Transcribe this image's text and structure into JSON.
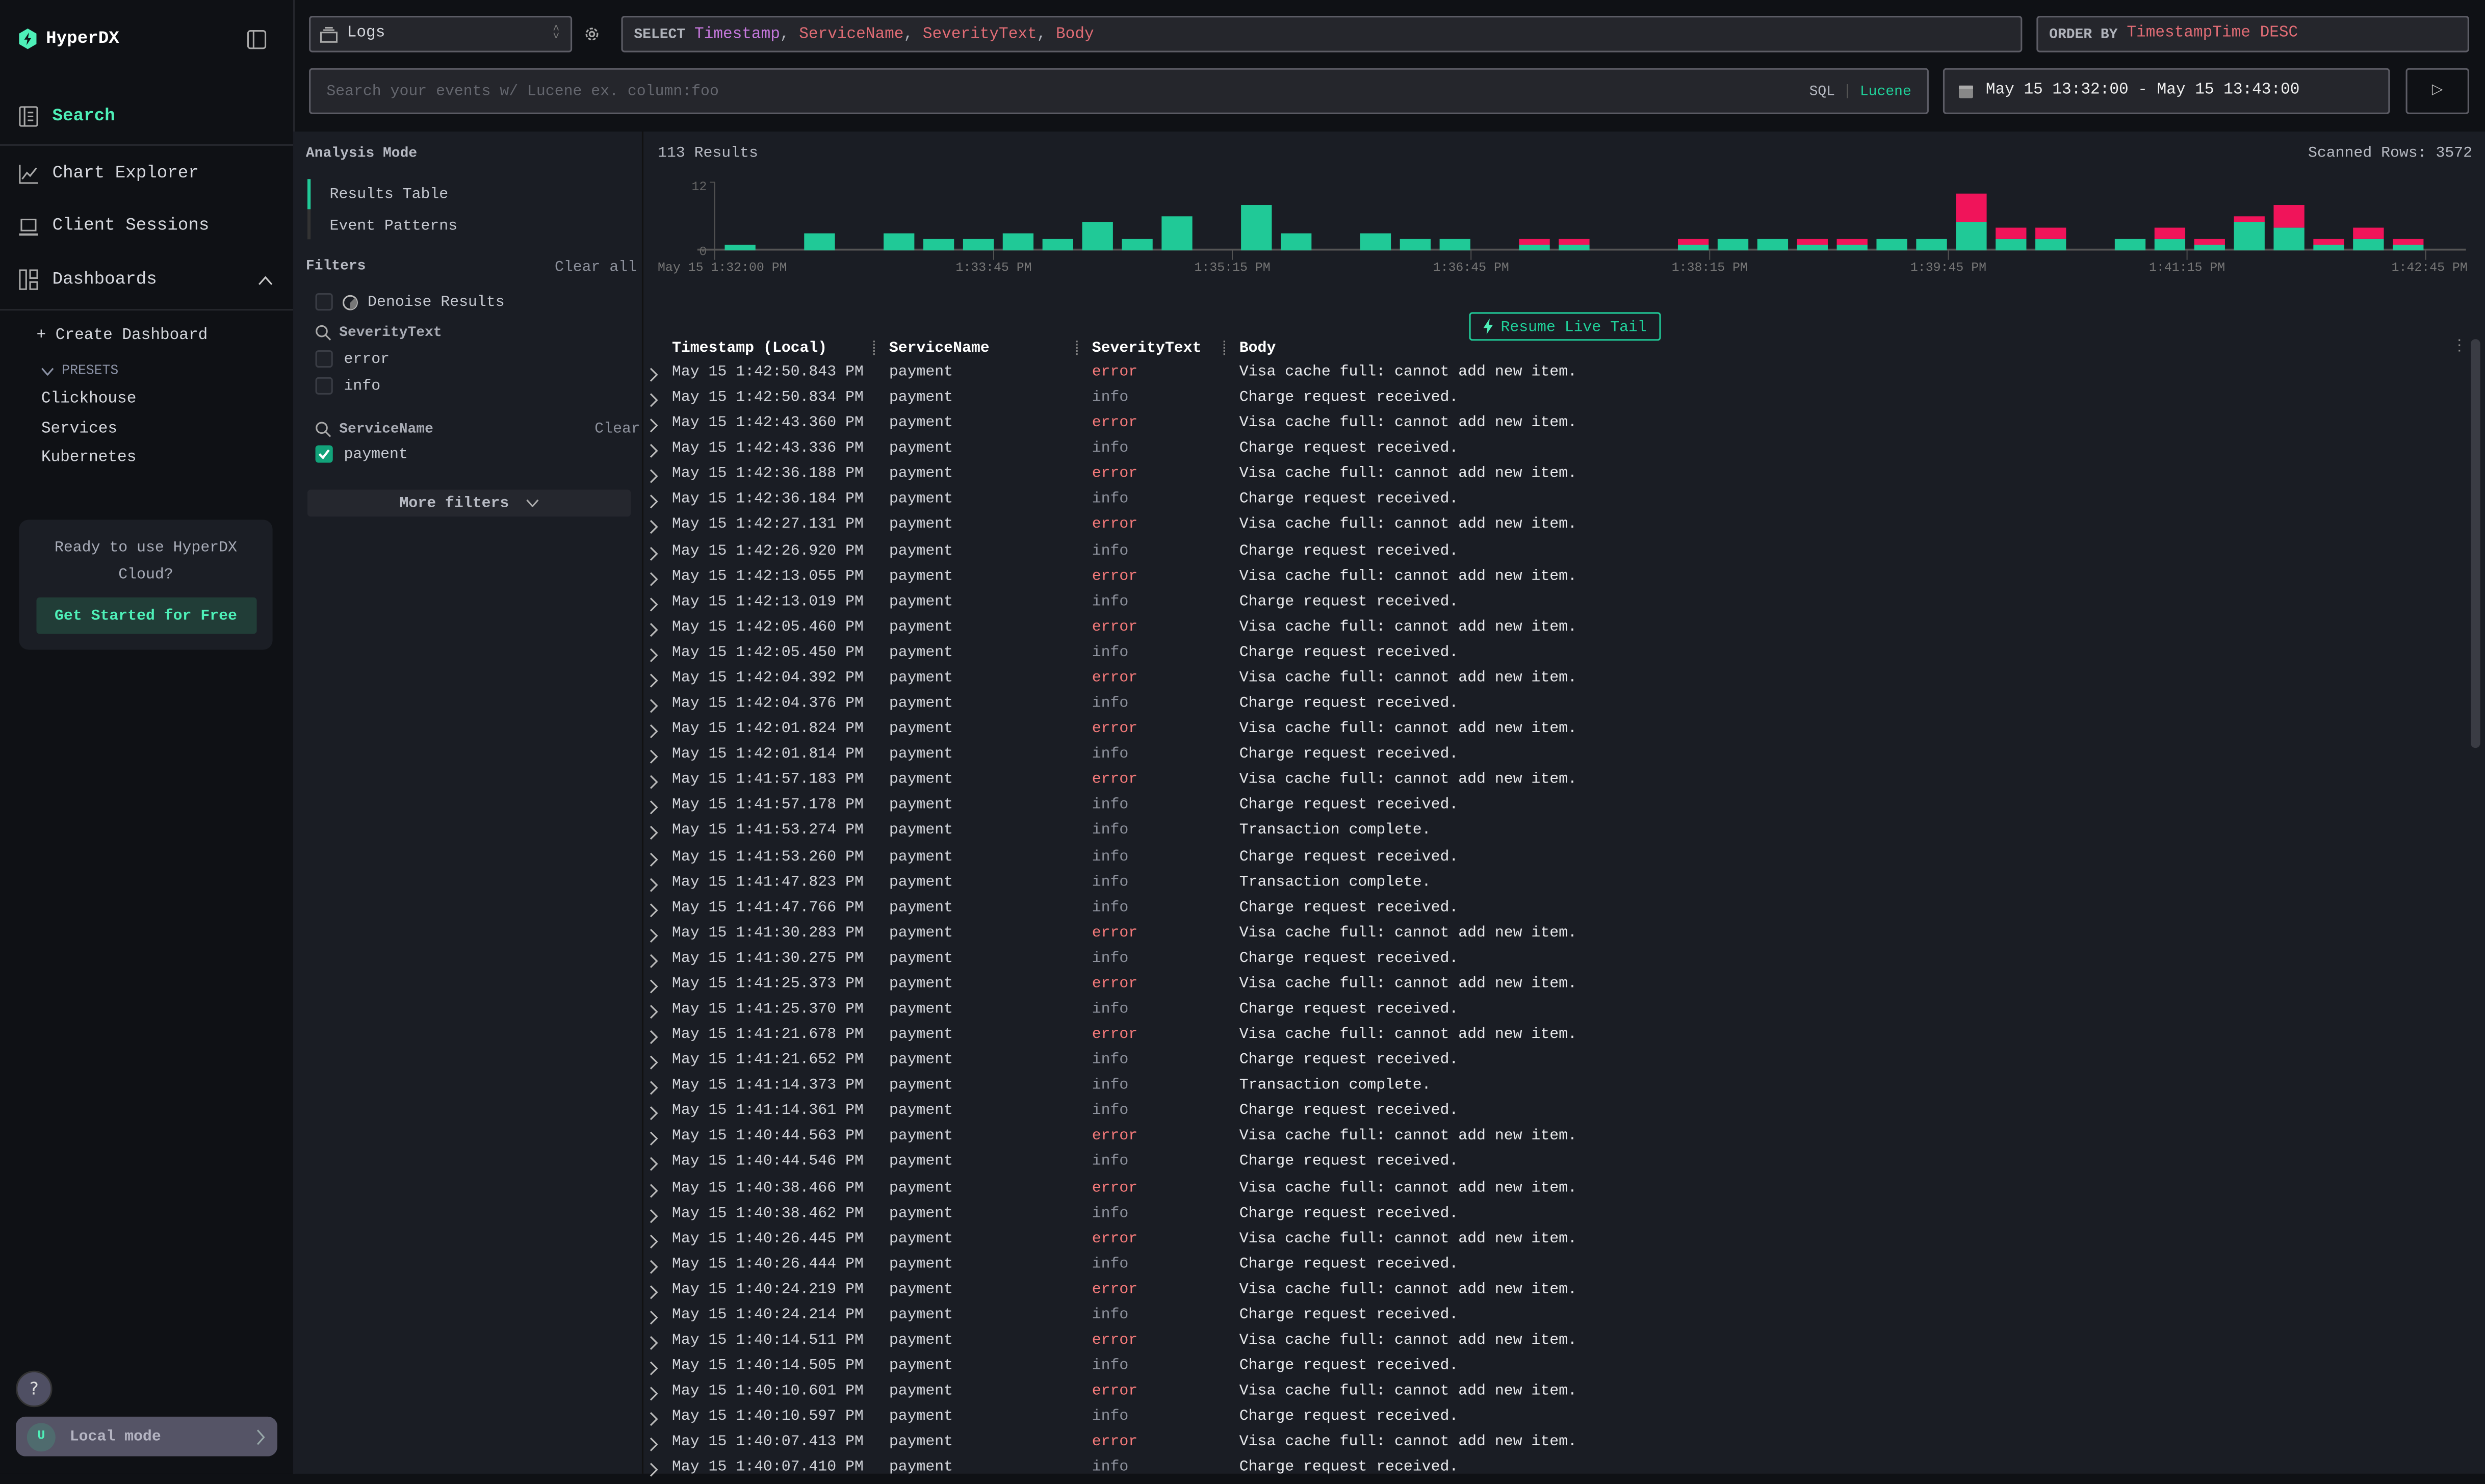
{
  "app": {
    "name": "HyperDX"
  },
  "sidebar": {
    "items": [
      {
        "label": "Search",
        "icon": "search-list-icon",
        "active": true
      },
      {
        "label": "Chart Explorer",
        "icon": "chart-line-icon"
      },
      {
        "label": "Client Sessions",
        "icon": "laptop-icon"
      },
      {
        "label": "Dashboards",
        "icon": "dashboard-icon"
      }
    ],
    "create_dashboard": "+ Create Dashboard",
    "presets_label": "PRESETS",
    "presets": [
      "Clickhouse",
      "Services",
      "Kubernetes"
    ],
    "cloud_text": "Ready to use HyperDX Cloud?",
    "cloud_button": "Get Started for Free",
    "help": "?",
    "user_initial": "U",
    "mode": "Local mode"
  },
  "toolbar": {
    "source": "Logs",
    "select_kw": "SELECT",
    "select_cols": [
      {
        "t": "Timestamp",
        "c": "#c678dd"
      },
      {
        "t": ", ",
        "c": "#b0b3bb"
      },
      {
        "t": "ServiceName",
        "c": "#e06c75"
      },
      {
        "t": ", ",
        "c": "#b0b3bb"
      },
      {
        "t": "SeverityText",
        "c": "#e06c75"
      },
      {
        "t": ", ",
        "c": "#b0b3bb"
      },
      {
        "t": "Body",
        "c": "#e06c75"
      }
    ],
    "order_kw": "ORDER BY",
    "order_value": "TimestampTime DESC",
    "search_placeholder": "Search your events w/ Lucene ex. column:foo",
    "lang_sql": "SQL",
    "lang_sep": "|",
    "lang_lucene": "Lucene",
    "time_range": "May 15 13:32:00 - May 15 13:43:00",
    "play": "▷"
  },
  "filters": {
    "analysis_mode": "Analysis Mode",
    "modes": [
      "Results Table",
      "Event Patterns"
    ],
    "title": "Filters",
    "clear_all": "Clear all",
    "denoise": "Denoise Results",
    "groups": [
      {
        "name": "SeverityText",
        "clear": "",
        "options": [
          {
            "label": "error",
            "checked": false
          },
          {
            "label": "info",
            "checked": false
          }
        ]
      },
      {
        "name": "ServiceName",
        "clear": "Clear",
        "options": [
          {
            "label": "payment",
            "checked": true
          }
        ]
      }
    ],
    "more": "More filters"
  },
  "results": {
    "count": "113 Results",
    "scanned": "Scanned Rows: 3572",
    "resume": "Resume Live Tail"
  },
  "colors": {
    "accent": "#4ef0b8",
    "info_bar": "#20c997",
    "error_bar": "#f0145a",
    "error_text": "#f47a7a"
  },
  "chart_data": {
    "type": "bar",
    "stacked": true,
    "ylim": [
      0,
      12
    ],
    "yticks": [
      "12",
      "0"
    ],
    "xticks": [
      "May 15 1:32:00 PM",
      "1:33:45 PM",
      "1:35:15 PM",
      "1:36:45 PM",
      "1:38:15 PM",
      "1:39:45 PM",
      "1:41:15 PM",
      "1:42:45 PM"
    ],
    "series": [
      {
        "severity": "info",
        "values": [
          1,
          0,
          3,
          0,
          3,
          2,
          2,
          3,
          2,
          5,
          2,
          6,
          0,
          8,
          3,
          0,
          3,
          2,
          2,
          0,
          1,
          1,
          0,
          0,
          1,
          2,
          2,
          1,
          1,
          2,
          2,
          5,
          2,
          2,
          0,
          2,
          2,
          1,
          5,
          4,
          1,
          2,
          1
        ]
      },
      {
        "severity": "error",
        "values": [
          0,
          0,
          0,
          0,
          0,
          0,
          0,
          0,
          0,
          0,
          0,
          0,
          0,
          0,
          0,
          0,
          0,
          0,
          0,
          0,
          1,
          1,
          0,
          0,
          1,
          0,
          0,
          1,
          1,
          0,
          0,
          5,
          2,
          2,
          0,
          0,
          2,
          1,
          1,
          4,
          1,
          2,
          1
        ]
      }
    ]
  },
  "table": {
    "columns": [
      "Timestamp (Local)",
      "ServiceName",
      "SeverityText",
      "Body"
    ],
    "rows": [
      [
        "May 15 1:42:50.843 PM",
        "payment",
        "error",
        "Visa cache full: cannot add new item."
      ],
      [
        "May 15 1:42:50.834 PM",
        "payment",
        "info",
        "Charge request received."
      ],
      [
        "May 15 1:42:43.360 PM",
        "payment",
        "error",
        "Visa cache full: cannot add new item."
      ],
      [
        "May 15 1:42:43.336 PM",
        "payment",
        "info",
        "Charge request received."
      ],
      [
        "May 15 1:42:36.188 PM",
        "payment",
        "error",
        "Visa cache full: cannot add new item."
      ],
      [
        "May 15 1:42:36.184 PM",
        "payment",
        "info",
        "Charge request received."
      ],
      [
        "May 15 1:42:27.131 PM",
        "payment",
        "error",
        "Visa cache full: cannot add new item."
      ],
      [
        "May 15 1:42:26.920 PM",
        "payment",
        "info",
        "Charge request received."
      ],
      [
        "May 15 1:42:13.055 PM",
        "payment",
        "error",
        "Visa cache full: cannot add new item."
      ],
      [
        "May 15 1:42:13.019 PM",
        "payment",
        "info",
        "Charge request received."
      ],
      [
        "May 15 1:42:05.460 PM",
        "payment",
        "error",
        "Visa cache full: cannot add new item."
      ],
      [
        "May 15 1:42:05.450 PM",
        "payment",
        "info",
        "Charge request received."
      ],
      [
        "May 15 1:42:04.392 PM",
        "payment",
        "error",
        "Visa cache full: cannot add new item."
      ],
      [
        "May 15 1:42:04.376 PM",
        "payment",
        "info",
        "Charge request received."
      ],
      [
        "May 15 1:42:01.824 PM",
        "payment",
        "error",
        "Visa cache full: cannot add new item."
      ],
      [
        "May 15 1:42:01.814 PM",
        "payment",
        "info",
        "Charge request received."
      ],
      [
        "May 15 1:41:57.183 PM",
        "payment",
        "error",
        "Visa cache full: cannot add new item."
      ],
      [
        "May 15 1:41:57.178 PM",
        "payment",
        "info",
        "Charge request received."
      ],
      [
        "May 15 1:41:53.274 PM",
        "payment",
        "info",
        "Transaction complete."
      ],
      [
        "May 15 1:41:53.260 PM",
        "payment",
        "info",
        "Charge request received."
      ],
      [
        "May 15 1:41:47.823 PM",
        "payment",
        "info",
        "Transaction complete."
      ],
      [
        "May 15 1:41:47.766 PM",
        "payment",
        "info",
        "Charge request received."
      ],
      [
        "May 15 1:41:30.283 PM",
        "payment",
        "error",
        "Visa cache full: cannot add new item."
      ],
      [
        "May 15 1:41:30.275 PM",
        "payment",
        "info",
        "Charge request received."
      ],
      [
        "May 15 1:41:25.373 PM",
        "payment",
        "error",
        "Visa cache full: cannot add new item."
      ],
      [
        "May 15 1:41:25.370 PM",
        "payment",
        "info",
        "Charge request received."
      ],
      [
        "May 15 1:41:21.678 PM",
        "payment",
        "error",
        "Visa cache full: cannot add new item."
      ],
      [
        "May 15 1:41:21.652 PM",
        "payment",
        "info",
        "Charge request received."
      ],
      [
        "May 15 1:41:14.373 PM",
        "payment",
        "info",
        "Transaction complete."
      ],
      [
        "May 15 1:41:14.361 PM",
        "payment",
        "info",
        "Charge request received."
      ],
      [
        "May 15 1:40:44.563 PM",
        "payment",
        "error",
        "Visa cache full: cannot add new item."
      ],
      [
        "May 15 1:40:44.546 PM",
        "payment",
        "info",
        "Charge request received."
      ],
      [
        "May 15 1:40:38.466 PM",
        "payment",
        "error",
        "Visa cache full: cannot add new item."
      ],
      [
        "May 15 1:40:38.462 PM",
        "payment",
        "info",
        "Charge request received."
      ],
      [
        "May 15 1:40:26.445 PM",
        "payment",
        "error",
        "Visa cache full: cannot add new item."
      ],
      [
        "May 15 1:40:26.444 PM",
        "payment",
        "info",
        "Charge request received."
      ],
      [
        "May 15 1:40:24.219 PM",
        "payment",
        "error",
        "Visa cache full: cannot add new item."
      ],
      [
        "May 15 1:40:24.214 PM",
        "payment",
        "info",
        "Charge request received."
      ],
      [
        "May 15 1:40:14.511 PM",
        "payment",
        "error",
        "Visa cache full: cannot add new item."
      ],
      [
        "May 15 1:40:14.505 PM",
        "payment",
        "info",
        "Charge request received."
      ],
      [
        "May 15 1:40:10.601 PM",
        "payment",
        "error",
        "Visa cache full: cannot add new item."
      ],
      [
        "May 15 1:40:10.597 PM",
        "payment",
        "info",
        "Charge request received."
      ],
      [
        "May 15 1:40:07.413 PM",
        "payment",
        "error",
        "Visa cache full: cannot add new item."
      ],
      [
        "May 15 1:40:07.410 PM",
        "payment",
        "info",
        "Charge request received."
      ]
    ]
  }
}
